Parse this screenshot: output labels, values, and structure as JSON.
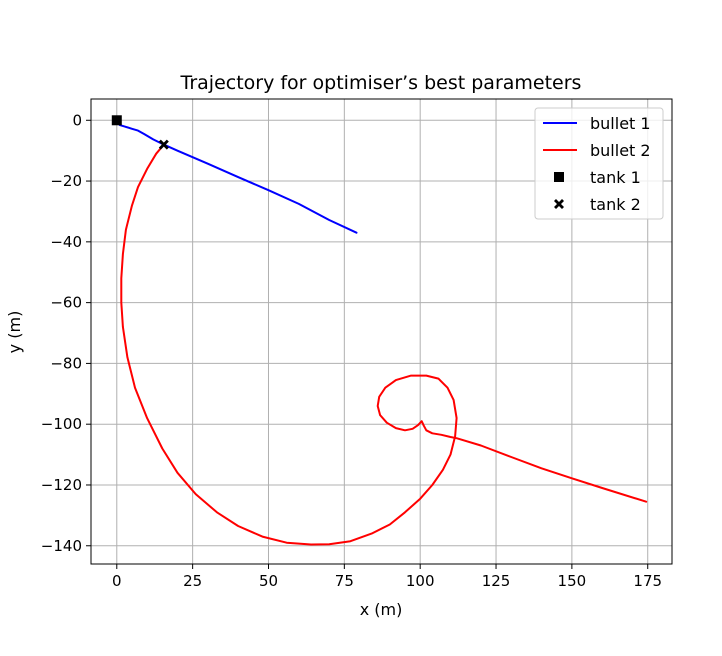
{
  "chart_data": {
    "type": "line",
    "title": "Trajectory for optimiser’s best parameters",
    "xlabel": "x (m)",
    "ylabel": "y (m)",
    "xlim": [
      -8.5,
      183
    ],
    "ylim": [
      -146,
      7
    ],
    "xticks": [
      0,
      25,
      50,
      75,
      100,
      125,
      150,
      175
    ],
    "xtick_labels": [
      "0",
      "25",
      "50",
      "75",
      "100",
      "125",
      "150",
      "175"
    ],
    "yticks": [
      0,
      -20,
      -40,
      -60,
      -80,
      -100,
      -120,
      -140
    ],
    "ytick_labels": [
      "0",
      "−20",
      "−40",
      "−60",
      "−80",
      "−100",
      "−120",
      "−140"
    ],
    "grid": true,
    "legend_position": "top-right",
    "series": [
      {
        "name": "bullet 1",
        "kind": "line",
        "color": "#0000ff",
        "points": [
          [
            0,
            0
          ],
          [
            1,
            -1.6
          ],
          [
            2.5,
            -2
          ],
          [
            5,
            -2.8
          ],
          [
            7,
            -3.4
          ],
          [
            9,
            -4.5
          ],
          [
            12,
            -6.3
          ],
          [
            15.5,
            -8
          ],
          [
            20,
            -10
          ],
          [
            30,
            -14.3
          ],
          [
            40,
            -18.7
          ],
          [
            50,
            -23
          ],
          [
            60,
            -27.5
          ],
          [
            70,
            -32.8
          ],
          [
            79,
            -37
          ]
        ]
      },
      {
        "name": "bullet 2",
        "kind": "line",
        "color": "#ff0000",
        "points": [
          [
            15.5,
            -8
          ],
          [
            13,
            -11
          ],
          [
            10,
            -16
          ],
          [
            7,
            -22
          ],
          [
            5,
            -28
          ],
          [
            3,
            -36
          ],
          [
            2,
            -44
          ],
          [
            1.5,
            -52
          ],
          [
            1.5,
            -60
          ],
          [
            2,
            -68
          ],
          [
            3.5,
            -78
          ],
          [
            6,
            -88
          ],
          [
            10,
            -98
          ],
          [
            15,
            -108
          ],
          [
            20,
            -116
          ],
          [
            26,
            -123
          ],
          [
            33,
            -129
          ],
          [
            40,
            -133.5
          ],
          [
            48,
            -137
          ],
          [
            56,
            -139
          ],
          [
            64,
            -139.6
          ],
          [
            70,
            -139.5
          ],
          [
            77,
            -138.5
          ],
          [
            84,
            -136
          ],
          [
            90,
            -133
          ],
          [
            95,
            -129
          ],
          [
            100,
            -124.5
          ],
          [
            104,
            -120
          ],
          [
            107.5,
            -115
          ],
          [
            110,
            -110
          ],
          [
            111.5,
            -104
          ],
          [
            112,
            -98
          ],
          [
            111,
            -92
          ],
          [
            109,
            -88
          ],
          [
            106,
            -85
          ],
          [
            102,
            -84
          ],
          [
            97,
            -84
          ],
          [
            92,
            -85.5
          ],
          [
            88.5,
            -88
          ],
          [
            86.5,
            -91
          ],
          [
            86,
            -94
          ],
          [
            86.8,
            -97
          ],
          [
            89,
            -99.5
          ],
          [
            92,
            -101.3
          ],
          [
            95,
            -102
          ],
          [
            97.5,
            -101.5
          ],
          [
            99.3,
            -100.3
          ],
          [
            100.5,
            -99
          ],
          [
            101.2,
            -100.5
          ],
          [
            102,
            -102
          ],
          [
            104,
            -103
          ],
          [
            107,
            -103.5
          ],
          [
            110,
            -104.2
          ],
          [
            112,
            -104.6
          ],
          [
            120,
            -107
          ],
          [
            130,
            -110.8
          ],
          [
            140,
            -114.5
          ],
          [
            150,
            -117.8
          ],
          [
            160,
            -121
          ],
          [
            174.5,
            -125.5
          ]
        ]
      },
      {
        "name": "tank 1",
        "kind": "marker",
        "marker": "square",
        "color": "#000000",
        "points": [
          [
            0,
            0
          ]
        ]
      },
      {
        "name": "tank 2",
        "kind": "marker",
        "marker": "x",
        "color": "#000000",
        "points": [
          [
            15.5,
            -8
          ]
        ]
      }
    ]
  }
}
